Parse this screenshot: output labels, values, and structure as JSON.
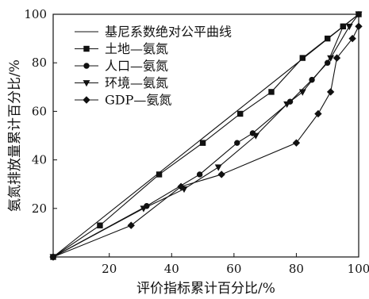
{
  "chart_data": {
    "type": "line",
    "title": "",
    "xlabel": "评价指标累计百分比/%",
    "ylabel": "氨氮排放量累计百分比/%",
    "xlim": [
      2,
      100
    ],
    "ylim": [
      0,
      100
    ],
    "xticks": [
      "20",
      "40",
      "60",
      "80",
      "100"
    ],
    "yticks": [
      "20",
      "40",
      "60",
      "80",
      "100"
    ],
    "xtick_values": [
      20,
      40,
      60,
      80,
      100
    ],
    "ytick_values": [
      20,
      40,
      60,
      80,
      100
    ],
    "grid": false,
    "legend_position": "top-left",
    "series": [
      {
        "name": "基尼系数绝对公平曲线",
        "marker": "none",
        "x": [
          2,
          100
        ],
        "y": [
          0,
          100
        ]
      },
      {
        "name": "土地—氨氮",
        "marker": "square",
        "x": [
          2,
          17,
          36,
          50,
          62,
          72,
          82,
          90,
          95,
          100
        ],
        "y": [
          0,
          13,
          34,
          47,
          59,
          68,
          82,
          90,
          95,
          100
        ]
      },
      {
        "name": "人口—氨氮",
        "marker": "circle",
        "x": [
          2,
          32,
          49,
          61,
          66,
          78,
          85,
          90,
          95,
          100
        ],
        "y": [
          0,
          21,
          34,
          47,
          51,
          64,
          73,
          80,
          95,
          100
        ]
      },
      {
        "name": "环境—氨氮",
        "marker": "triangle-down",
        "x": [
          2,
          31,
          44,
          55,
          67,
          77,
          82,
          91,
          97,
          100
        ],
        "y": [
          0,
          20,
          28,
          37,
          50,
          63,
          68,
          82,
          95,
          100
        ]
      },
      {
        "name": "GDP—氨氮",
        "marker": "diamond",
        "x": [
          2,
          27,
          43,
          56,
          80,
          87,
          91,
          93,
          98,
          100
        ],
        "y": [
          0,
          13,
          29,
          34,
          47,
          59,
          68,
          82,
          90,
          95
        ]
      }
    ]
  }
}
